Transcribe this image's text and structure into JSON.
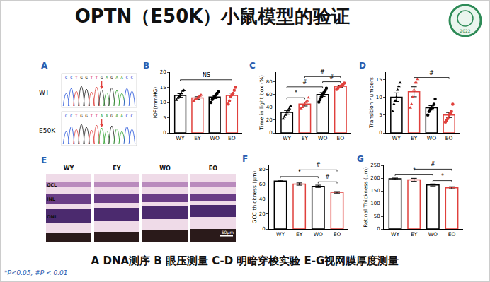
{
  "title": "OPTN（E50K）小鼠模型的验证",
  "logo_text": "2022",
  "caption": "A DNA测序 B 眼压测量 C-D 明暗穿梭实验 E-G视网膜厚度测量",
  "footnote": "*P<0.05, #P < 0.01",
  "panel_A": {
    "label": "A",
    "rows": [
      {
        "name": "WT",
        "sequence": "CCTGGTTGAGAACC"
      },
      {
        "name": "E50K",
        "sequence": "CCTGGTTAAGAACC"
      }
    ]
  },
  "panel_E": {
    "label": "E",
    "columns": [
      "WY",
      "EY",
      "WO",
      "EO"
    ],
    "layers": [
      "GCL",
      "INL",
      "ONL"
    ],
    "scale_bar": "50μm"
  },
  "chart_data": [
    {
      "title": "B",
      "type": "bar",
      "y_label": "IOP(mmHG)",
      "categories": [
        "WY",
        "EY",
        "WO",
        "EO"
      ],
      "values": [
        12.3,
        11.5,
        11.8,
        12.3
      ],
      "errors": [
        0.6,
        0.4,
        0.5,
        0.8
      ],
      "colors": [
        "#000000",
        "#e0403c",
        "#000000",
        "#e0403c"
      ],
      "points": [
        [
          10.8,
          11.5,
          12,
          12.5,
          13,
          13.8,
          14
        ],
        [
          10.5,
          11,
          11.2,
          11.5,
          11.8,
          12.2,
          12.5
        ],
        [
          10,
          11,
          11.5,
          12,
          12.5,
          13,
          13.5
        ],
        [
          9.5,
          10.5,
          12,
          12.5,
          13,
          14,
          15
        ]
      ],
      "ylim": [
        0,
        20
      ],
      "yticks": [
        0,
        5,
        10,
        15,
        20
      ],
      "brackets": [
        {
          "from": "WY",
          "to": "EO",
          "y": 17.5,
          "label": "NS"
        }
      ]
    },
    {
      "title": "C",
      "type": "bar",
      "y_label": "Time in light box (%)",
      "categories": [
        "WY",
        "EY",
        "WO",
        "EO"
      ],
      "values": [
        32,
        45,
        60,
        73
      ],
      "errors": [
        3,
        3,
        3,
        1.5
      ],
      "colors": [
        "#000000",
        "#e0403c",
        "#000000",
        "#e0403c"
      ],
      "points": [
        [
          22,
          25,
          28,
          32,
          35,
          38,
          42
        ],
        [
          38,
          40,
          43,
          45,
          48,
          50,
          55
        ],
        [
          48,
          52,
          56,
          60,
          63,
          66,
          70
        ],
        [
          68,
          70,
          72,
          73,
          74,
          76,
          78
        ]
      ],
      "ylim": [
        0,
        95
      ],
      "yticks": [
        0,
        20,
        40,
        60,
        80
      ],
      "brackets": [
        {
          "from": "WY",
          "to": "EY",
          "y": 55,
          "label": "*"
        },
        {
          "from": "WY",
          "to": "WO",
          "y": 72,
          "label": "#"
        },
        {
          "from": "WO",
          "to": "EO",
          "y": 80,
          "label": "#"
        },
        {
          "from": "EY",
          "to": "EO",
          "y": 88,
          "label": "#"
        }
      ]
    },
    {
      "title": "D",
      "type": "bar",
      "y_label": "Transition numbers",
      "categories": [
        "WY",
        "EY",
        "WO",
        "EO"
      ],
      "values": [
        10,
        11.5,
        7,
        5
      ],
      "errors": [
        1.2,
        1.4,
        0.6,
        0.7
      ],
      "colors": [
        "#000000",
        "#e0403c",
        "#000000",
        "#e0403c"
      ],
      "points": [
        [
          6,
          8,
          9,
          10,
          12,
          13,
          14
        ],
        [
          7,
          8,
          10,
          12,
          14,
          14,
          15
        ],
        [
          5,
          6,
          6.5,
          7,
          7,
          8,
          9.5
        ],
        [
          3,
          3.5,
          4,
          5,
          5.5,
          6,
          8
        ]
      ],
      "ylim": [
        0,
        17
      ],
      "yticks": [
        0,
        5,
        10,
        15
      ],
      "brackets": [
        {
          "from": "EY",
          "to": "EO",
          "y": 15.5,
          "label": "#"
        }
      ]
    },
    {
      "title": "F",
      "type": "bar",
      "y_label": "GCC thickness (μm)",
      "categories": [
        "WY",
        "EY",
        "WO",
        "EO"
      ],
      "values": [
        64,
        60,
        57,
        49
      ],
      "errors": [
        1,
        1.5,
        1.5,
        1
      ],
      "colors": [
        "#000000",
        "#e0403c",
        "#000000",
        "#e0403c"
      ],
      "points": [
        [],
        [],
        [],
        []
      ],
      "ylim": [
        0,
        85
      ],
      "yticks": [
        0,
        20,
        40,
        60,
        80
      ],
      "brackets": [
        {
          "from": "WO",
          "to": "EO",
          "y": 63,
          "label": "#"
        },
        {
          "from": "WY",
          "to": "WO",
          "y": 70,
          "label": "*"
        },
        {
          "from": "EY",
          "to": "EO",
          "y": 79,
          "label": "#"
        }
      ]
    },
    {
      "title": "G",
      "type": "bar",
      "y_label": "Retinal Thickness (μm)",
      "categories": [
        "WY",
        "EY",
        "WO",
        "EO"
      ],
      "values": [
        197,
        193,
        173,
        162
      ],
      "errors": [
        3,
        6,
        4,
        4
      ],
      "colors": [
        "#000000",
        "#e0403c",
        "#000000",
        "#e0403c"
      ],
      "points": [
        [],
        [],
        [],
        []
      ],
      "ylim": [
        0,
        250
      ],
      "yticks": [
        0,
        50,
        100,
        150,
        200,
        250
      ],
      "brackets": [
        {
          "from": "WO",
          "to": "EO",
          "y": 190,
          "label": "*"
        },
        {
          "from": "WY",
          "to": "WO",
          "y": 215,
          "label": "*"
        },
        {
          "from": "EY",
          "to": "EO",
          "y": 235,
          "label": "#"
        }
      ]
    }
  ]
}
